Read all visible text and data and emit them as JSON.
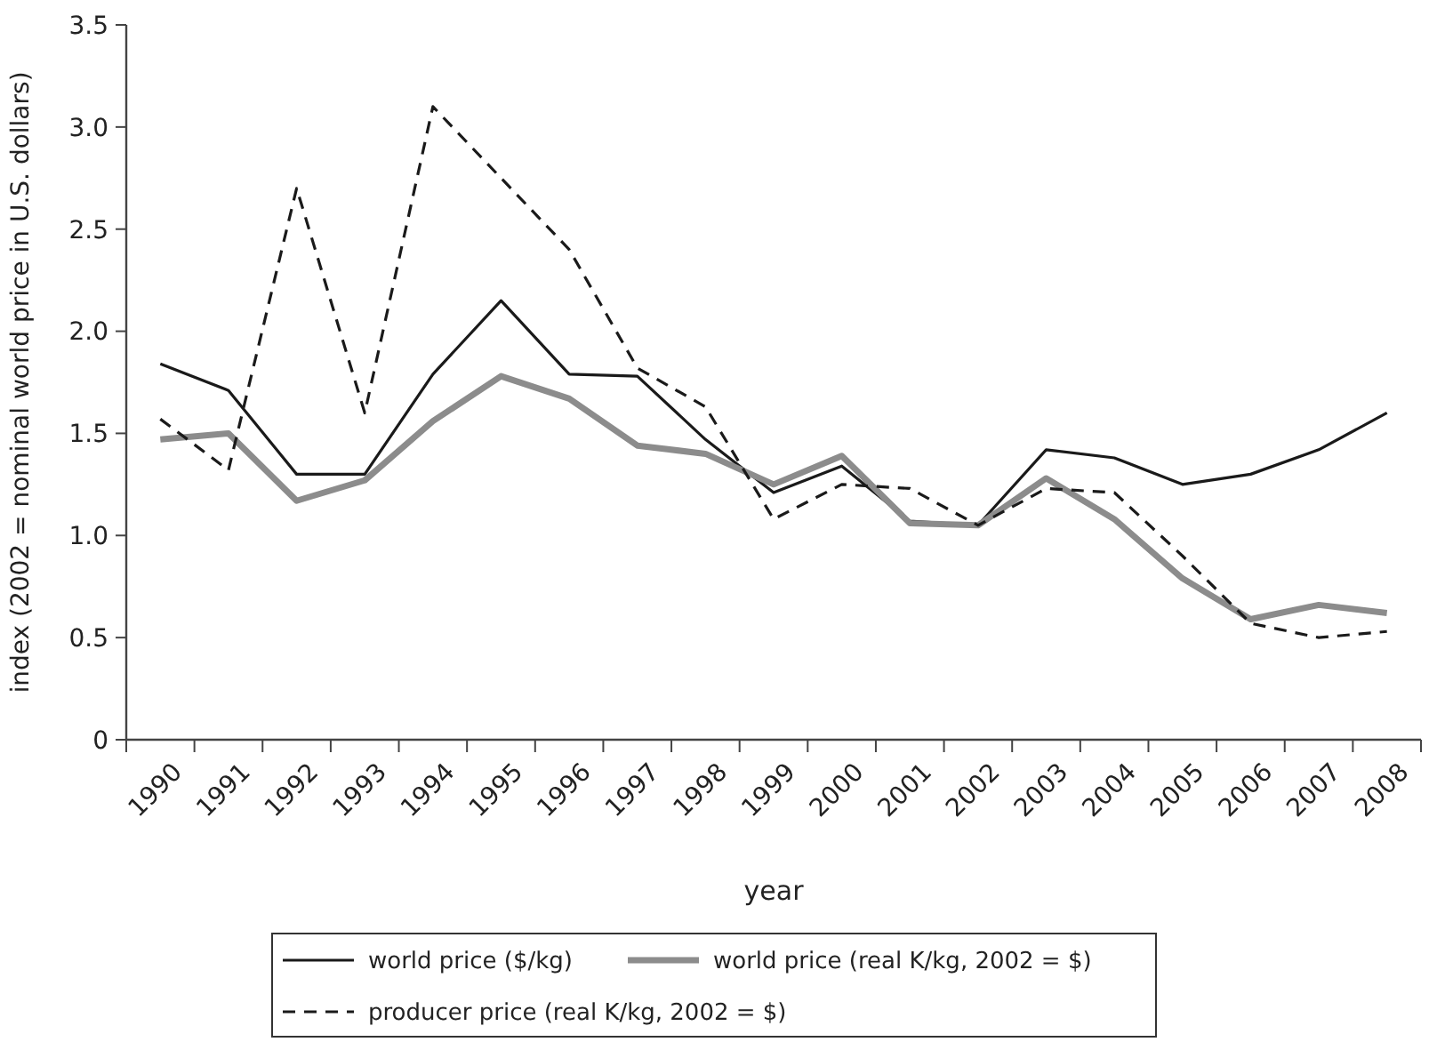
{
  "chart_data": {
    "type": "line",
    "xlabel": "year",
    "ylabel": "index (2002 = nominal world price in U.S. dollars)",
    "categories": [
      "1990",
      "1991",
      "1992",
      "1993",
      "1994",
      "1995",
      "1996",
      "1997",
      "1998",
      "1999",
      "2000",
      "2001",
      "2002",
      "2003",
      "2004",
      "2005",
      "2006",
      "2007",
      "2008"
    ],
    "ylim": [
      0,
      3.5
    ],
    "yticks": [
      0,
      0.5,
      {
        "value": 1,
        "label": "1.0"
      },
      {
        "value": 1.5,
        "label": "1.5"
      },
      {
        "value": 2,
        "label": "2.0"
      },
      {
        "value": 2.5,
        "label": "2.5"
      },
      {
        "value": 3,
        "label": "3.0"
      },
      {
        "value": 3.5,
        "label": "3.5"
      }
    ],
    "grid": false,
    "legend": "bottom",
    "series": [
      {
        "name": "world price ($/kg)",
        "color": "#1a1a1a",
        "line_style": "solid",
        "values": [
          1.84,
          1.71,
          1.3,
          1.3,
          1.79,
          2.15,
          1.79,
          1.78,
          1.47,
          1.21,
          1.34,
          1.07,
          1.05,
          1.42,
          1.38,
          1.25,
          1.3,
          1.42,
          1.6
        ]
      },
      {
        "name": "world price (real K/kg, 2002 = $)",
        "color": "#8c8c8c",
        "line_style": "solid",
        "values": [
          1.47,
          1.5,
          1.17,
          1.27,
          1.56,
          1.78,
          1.67,
          1.44,
          1.4,
          1.25,
          1.39,
          1.06,
          1.05,
          1.28,
          1.08,
          0.79,
          0.59,
          0.66,
          0.62
        ]
      },
      {
        "name": "producer price (real K/kg, 2002 = $)",
        "color": "#1a1a1a",
        "line_style": "dashed",
        "values": [
          1.57,
          1.32,
          2.7,
          1.6,
          3.1,
          2.75,
          2.4,
          1.82,
          1.63,
          1.08,
          1.25,
          1.23,
          1.05,
          1.23,
          1.21,
          0.9,
          0.57,
          0.5,
          0.53
        ]
      }
    ]
  }
}
